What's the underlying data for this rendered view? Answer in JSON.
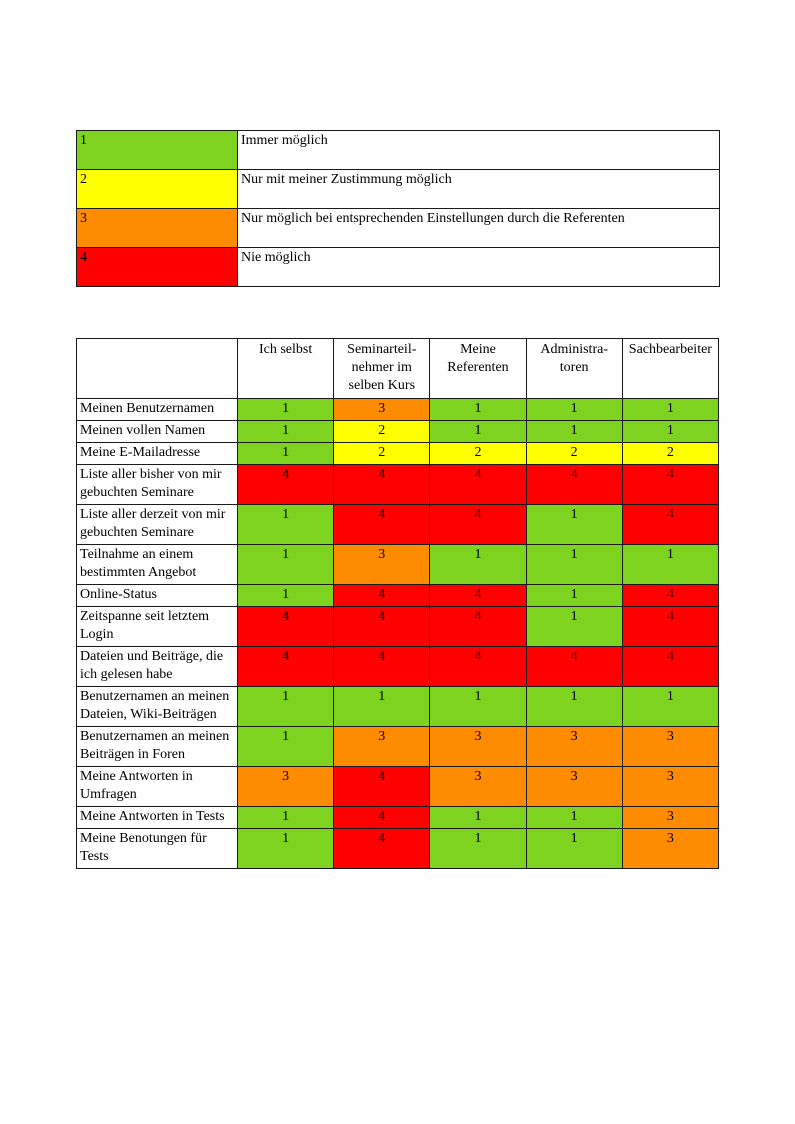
{
  "level_colors": {
    "1": "#7ED321",
    "2": "#FFFF00",
    "3": "#FF8C00",
    "4": "#FF0000"
  },
  "legend": {
    "rows": [
      {
        "value": "1",
        "label": "Immer möglich"
      },
      {
        "value": "2",
        "label": "Nur mit meiner Zustimmung möglich"
      },
      {
        "value": "3",
        "label": "Nur möglich bei entsprechenden Einstellungen durch die Referenten"
      },
      {
        "value": "4",
        "label": "Nie möglich"
      }
    ]
  },
  "permissions": {
    "columns": [
      "",
      "Ich selbst",
      "Seminarteil-nehmer im selben Kurs",
      "Meine Referenten",
      "Administra-toren",
      "Sachbearbeiter"
    ],
    "rows": [
      {
        "label": "Meinen Benutzernamen",
        "values": [
          "1",
          "3",
          "1",
          "1",
          "1"
        ]
      },
      {
        "label": "Meinen vollen Namen",
        "values": [
          "1",
          "2",
          "1",
          "1",
          "1"
        ]
      },
      {
        "label": "Meine E-Mailadresse",
        "values": [
          "1",
          "2",
          "2",
          "2",
          "2"
        ]
      },
      {
        "label": "Liste aller bisher von mir gebuchten Seminare",
        "values": [
          "4",
          "4",
          "4",
          "4",
          "4"
        ]
      },
      {
        "label": "Liste aller derzeit von mir gebuchten Seminare",
        "values": [
          "1",
          "4",
          "4",
          "1",
          "4"
        ]
      },
      {
        "label": "Teilnahme an einem bestimmten Angebot",
        "values": [
          "1",
          "3",
          "1",
          "1",
          "1"
        ]
      },
      {
        "label": "Online-Status",
        "values": [
          "1",
          "4",
          "4",
          "1",
          "4"
        ]
      },
      {
        "label": "Zeitspanne seit letztem Login",
        "values": [
          "4",
          "4",
          "4",
          "1",
          "4"
        ]
      },
      {
        "label": "Dateien und Beiträge, die ich gelesen habe",
        "values": [
          "4",
          "4",
          "4",
          "4",
          "4"
        ]
      },
      {
        "label": "Benutzernamen an meinen Dateien, Wiki-Beiträgen",
        "values": [
          "1",
          "1",
          "1",
          "1",
          "1"
        ]
      },
      {
        "label": "Benutzernamen an meinen Beiträgen in Foren",
        "values": [
          "1",
          "3",
          "3",
          "3",
          "3"
        ]
      },
      {
        "label": "Meine Antworten in Umfragen",
        "values": [
          "3",
          "4",
          "3",
          "3",
          "3"
        ]
      },
      {
        "label": "Meine Antworten in Tests",
        "values": [
          "1",
          "4",
          "1",
          "1",
          "3"
        ]
      },
      {
        "label": "Meine Benotungen für Tests",
        "values": [
          "1",
          "4",
          "1",
          "1",
          "3"
        ]
      }
    ]
  }
}
